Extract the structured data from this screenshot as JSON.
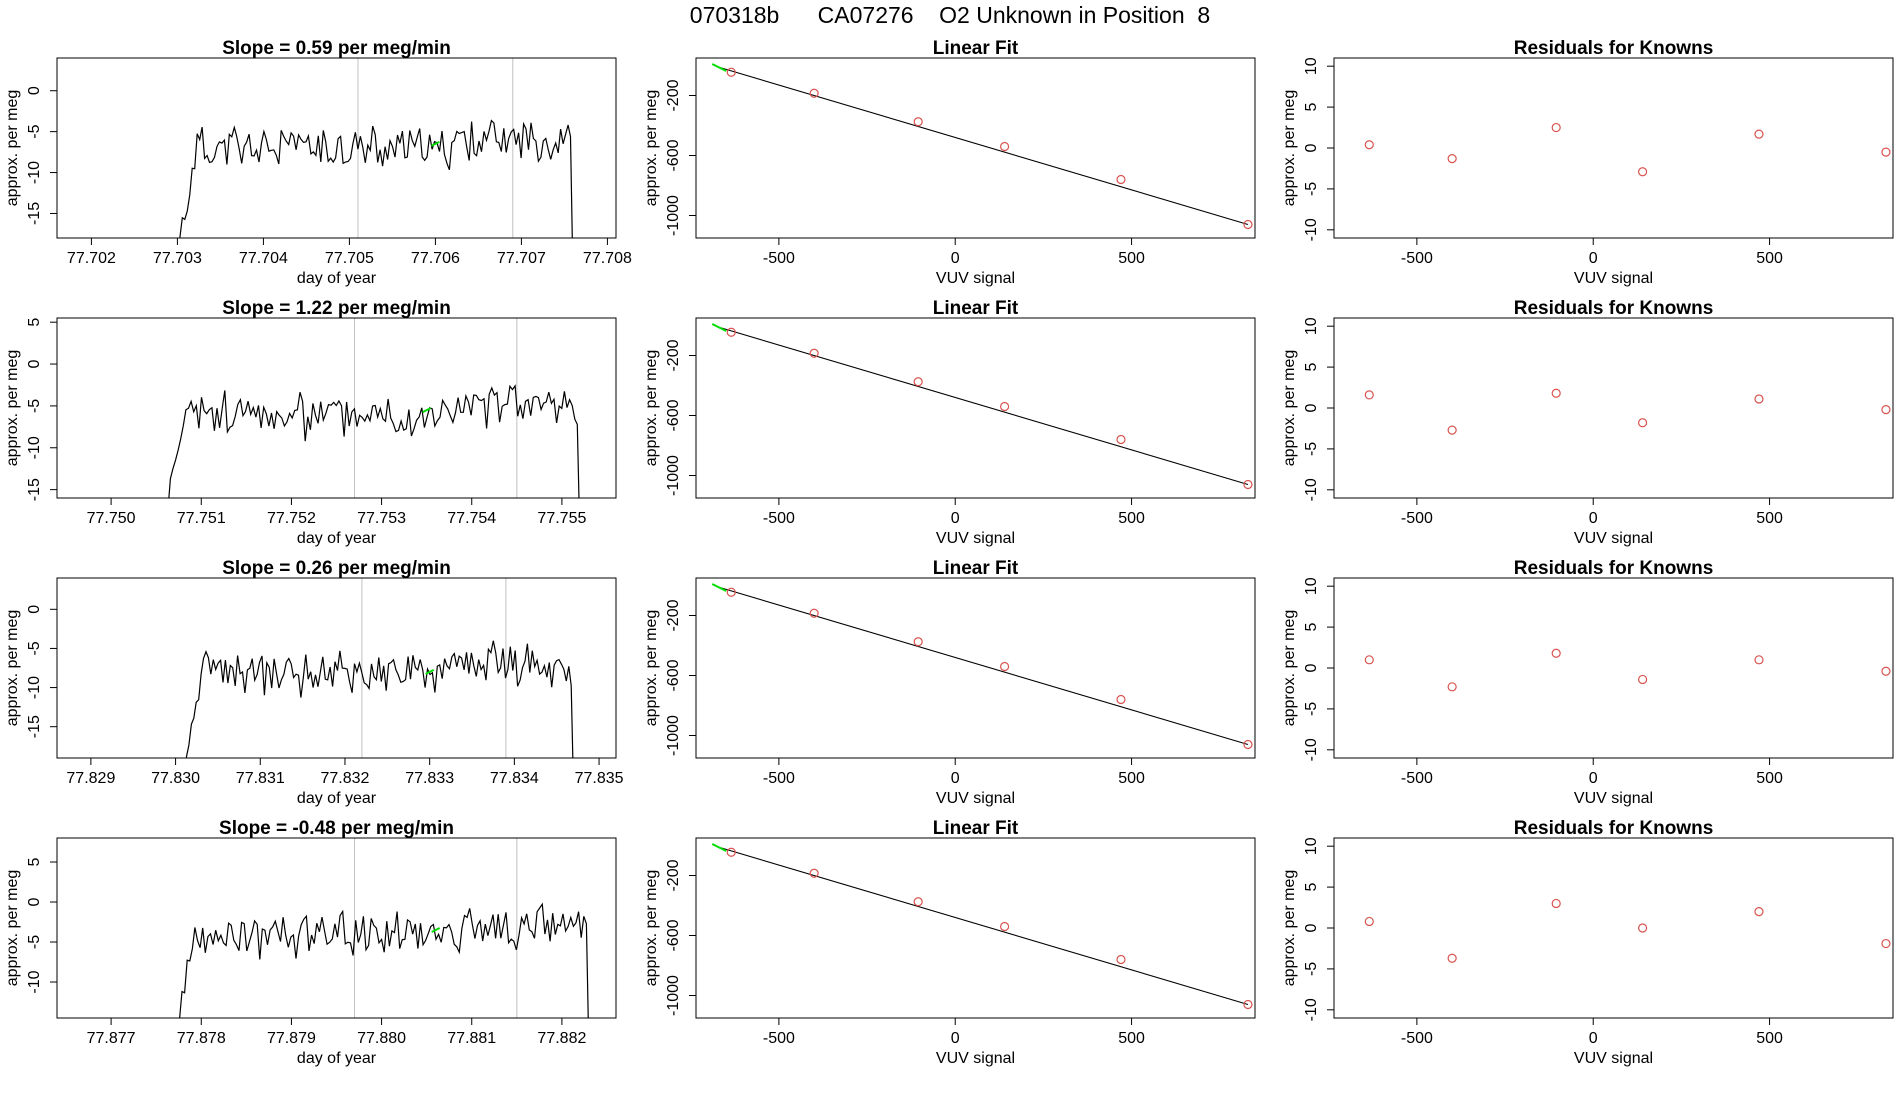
{
  "main_title": "070318b      CA07276    O2 Unknown in Position  8",
  "colors": {
    "trace": "#000000",
    "highlight": "#00dd00",
    "residual_points": "#d9534f",
    "marker_lines": "#c0c0c0"
  },
  "chart_data": [
    {
      "type": "line",
      "title": "Slope =  0.59  per meg/min",
      "xlabel": "day of year",
      "ylabel": "approx. per meg",
      "xlim": [
        77.7016,
        77.7081
      ],
      "ylim": [
        -18,
        4
      ],
      "xticks": [
        "77.702",
        "77.703",
        "77.704",
        "77.705",
        "77.706",
        "77.707",
        "77.708"
      ],
      "yticks": [
        "0",
        "-5",
        "-10",
        "-15"
      ],
      "series": {
        "x_start": 77.703,
        "x_end": 77.7076,
        "base": -7,
        "seed": 11
      },
      "vlines": [
        77.7051,
        77.7069
      ],
      "highlight_point": [
        77.706,
        -6.5
      ]
    },
    {
      "type": "scatter",
      "title": "Linear Fit",
      "xlabel": "VUV signal",
      "ylabel": "approx. per meg",
      "xlim": [
        -735,
        850
      ],
      "ylim": [
        -1150,
        50
      ],
      "xticks": [
        "-500",
        "0",
        "500"
      ],
      "yticks": [
        "-200",
        "-600",
        "-1000"
      ],
      "points": [
        [
          -635,
          -45
        ],
        [
          -400,
          -185
        ],
        [
          -105,
          -375
        ],
        [
          140,
          -540
        ],
        [
          470,
          -760
        ],
        [
          830,
          -1060
        ]
      ],
      "fit_line": [
        [
          -665,
          -15
        ],
        [
          830,
          -1060
        ]
      ],
      "highlight_point": [
        -655,
        -30
      ]
    },
    {
      "type": "scatter",
      "title": "Residuals for Knowns",
      "xlabel": "VUV signal",
      "ylabel": "approx. per meg",
      "xlim": [
        -735,
        850
      ],
      "ylim": [
        -11,
        11
      ],
      "xticks": [
        "-500",
        "0",
        "500"
      ],
      "yticks": [
        "10",
        "5",
        "0",
        "-5",
        "-10"
      ],
      "points": [
        [
          -635,
          0.4
        ],
        [
          -400,
          -1.3
        ],
        [
          -105,
          2.5
        ],
        [
          140,
          -2.9
        ],
        [
          470,
          1.7
        ],
        [
          830,
          -0.5
        ]
      ]
    },
    {
      "type": "line",
      "title": "Slope =  1.22  per meg/min",
      "xlabel": "day of year",
      "ylabel": "approx. per meg",
      "xlim": [
        77.7494,
        77.7556
      ],
      "ylim": [
        -16,
        5.5
      ],
      "xticks": [
        "77.750",
        "77.751",
        "77.752",
        "77.753",
        "77.754",
        "77.755"
      ],
      "yticks": [
        "5",
        "0",
        "-5",
        "-10",
        "-15"
      ],
      "series": {
        "x_start": 77.7506,
        "x_end": 77.7552,
        "base": -6,
        "seed": 23
      },
      "vlines": [
        77.7527,
        77.7545
      ],
      "highlight_point": [
        77.7535,
        -5.5
      ]
    },
    {
      "type": "scatter",
      "title": "Linear Fit",
      "xlabel": "VUV signal",
      "ylabel": "approx. per meg",
      "xlim": [
        -735,
        850
      ],
      "ylim": [
        -1150,
        50
      ],
      "xticks": [
        "-500",
        "0",
        "500"
      ],
      "yticks": [
        "-200",
        "-600",
        "-1000"
      ],
      "points": [
        [
          -635,
          -45
        ],
        [
          -400,
          -185
        ],
        [
          -105,
          -375
        ],
        [
          140,
          -540
        ],
        [
          470,
          -760
        ],
        [
          830,
          -1060
        ]
      ],
      "fit_line": [
        [
          -665,
          -15
        ],
        [
          830,
          -1060
        ]
      ],
      "highlight_point": [
        -655,
        -30
      ]
    },
    {
      "type": "scatter",
      "title": "Residuals for Knowns",
      "xlabel": "VUV signal",
      "ylabel": "approx. per meg",
      "xlim": [
        -735,
        850
      ],
      "ylim": [
        -11,
        11
      ],
      "xticks": [
        "-500",
        "0",
        "500"
      ],
      "yticks": [
        "10",
        "5",
        "0",
        "-5",
        "-10"
      ],
      "points": [
        [
          -635,
          1.6
        ],
        [
          -400,
          -2.7
        ],
        [
          -105,
          1.8
        ],
        [
          140,
          -1.8
        ],
        [
          470,
          1.1
        ],
        [
          830,
          -0.2
        ]
      ]
    },
    {
      "type": "line",
      "title": "Slope =  0.26  per meg/min",
      "xlabel": "day of year",
      "ylabel": "approx. per meg",
      "xlim": [
        77.8286,
        77.8352
      ],
      "ylim": [
        -19,
        4
      ],
      "xticks": [
        "77.829",
        "77.830",
        "77.831",
        "77.832",
        "77.833",
        "77.834",
        "77.835"
      ],
      "yticks": [
        "0",
        "-5",
        "-10",
        "-15"
      ],
      "series": {
        "x_start": 77.8301,
        "x_end": 77.8347,
        "base": -8,
        "seed": 37
      },
      "vlines": [
        77.8322,
        77.8339
      ],
      "highlight_point": [
        77.833,
        -8
      ]
    },
    {
      "type": "scatter",
      "title": "Linear Fit",
      "xlabel": "VUV signal",
      "ylabel": "approx. per meg",
      "xlim": [
        -735,
        850
      ],
      "ylim": [
        -1150,
        50
      ],
      "xticks": [
        "-500",
        "0",
        "500"
      ],
      "yticks": [
        "-200",
        "-600",
        "-1000"
      ],
      "points": [
        [
          -635,
          -45
        ],
        [
          -400,
          -185
        ],
        [
          -105,
          -375
        ],
        [
          140,
          -540
        ],
        [
          470,
          -760
        ],
        [
          830,
          -1060
        ]
      ],
      "fit_line": [
        [
          -665,
          -15
        ],
        [
          830,
          -1060
        ]
      ],
      "highlight_point": [
        -655,
        -30
      ]
    },
    {
      "type": "scatter",
      "title": "Residuals for Knowns",
      "xlabel": "VUV signal",
      "ylabel": "approx. per meg",
      "xlim": [
        -735,
        850
      ],
      "ylim": [
        -11,
        11
      ],
      "xticks": [
        "-500",
        "0",
        "500"
      ],
      "yticks": [
        "10",
        "5",
        "0",
        "-5",
        "-10"
      ],
      "points": [
        [
          -635,
          1.0
        ],
        [
          -400,
          -2.3
        ],
        [
          -105,
          1.8
        ],
        [
          140,
          -1.4
        ],
        [
          470,
          1.0
        ],
        [
          830,
          -0.4
        ]
      ]
    },
    {
      "type": "line",
      "title": "Slope =  -0.48  per meg/min",
      "xlabel": "day of year",
      "ylabel": "approx. per meg",
      "xlim": [
        77.8764,
        77.8826
      ],
      "ylim": [
        -14.5,
        8
      ],
      "xticks": [
        "77.877",
        "77.878",
        "77.879",
        "77.880",
        "77.881",
        "77.882"
      ],
      "yticks": [
        "5",
        "0",
        "-5",
        "-10"
      ],
      "series": {
        "x_start": 77.8777,
        "x_end": 77.8823,
        "base": -4,
        "seed": 53
      },
      "vlines": [
        77.8797,
        77.8815
      ],
      "highlight_point": [
        77.8806,
        -3.5
      ]
    },
    {
      "type": "scatter",
      "title": "Linear Fit",
      "xlabel": "VUV signal",
      "ylabel": "approx. per meg",
      "xlim": [
        -735,
        850
      ],
      "ylim": [
        -1150,
        50
      ],
      "xticks": [
        "-500",
        "0",
        "500"
      ],
      "yticks": [
        "-200",
        "-600",
        "-1000"
      ],
      "points": [
        [
          -635,
          -45
        ],
        [
          -400,
          -185
        ],
        [
          -105,
          -375
        ],
        [
          140,
          -540
        ],
        [
          470,
          -760
        ],
        [
          830,
          -1060
        ]
      ],
      "fit_line": [
        [
          -665,
          -15
        ],
        [
          830,
          -1060
        ]
      ],
      "highlight_point": [
        -655,
        -30
      ]
    },
    {
      "type": "scatter",
      "title": "Residuals for Knowns",
      "xlabel": "VUV signal",
      "ylabel": "approx. per meg",
      "xlim": [
        -735,
        850
      ],
      "ylim": [
        -11,
        11
      ],
      "xticks": [
        "-500",
        "0",
        "500"
      ],
      "yticks": [
        "10",
        "5",
        "0",
        "-5",
        "-10"
      ],
      "points": [
        [
          -635,
          0.8
        ],
        [
          -400,
          -3.7
        ],
        [
          -105,
          3.0
        ],
        [
          140,
          0.0
        ],
        [
          470,
          2.0
        ],
        [
          830,
          -1.9
        ]
      ]
    }
  ]
}
